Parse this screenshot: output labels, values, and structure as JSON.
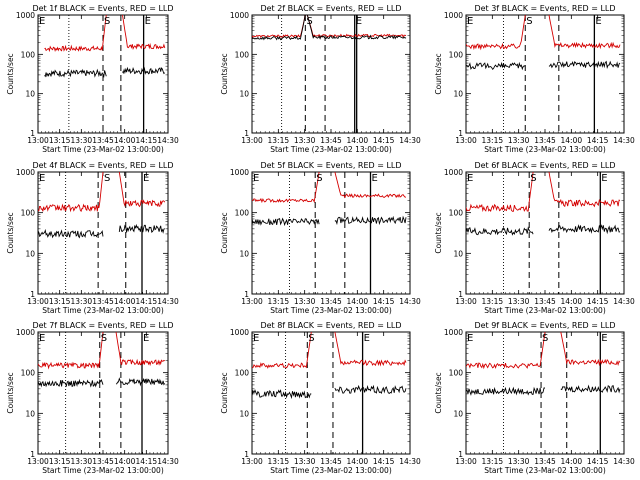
{
  "figure": {
    "background": "#ffffff",
    "series_colors": {
      "events": "#000000",
      "lld": "#d40000"
    }
  },
  "chart_data": [
    {
      "type": "line",
      "title": "Det 1f BLACK = Events, RED = LLD",
      "xlabel": "Start Time (23-Mar-02 13:00:00)",
      "ylabel": "Counts/sec",
      "xticks": [
        "13:00",
        "13:15",
        "13:30",
        "13:45",
        "14:00",
        "14:15",
        "14:30"
      ],
      "yticks": [
        "1",
        "10",
        "100",
        "1000"
      ],
      "ylim": [
        1,
        1000
      ],
      "ylog": true,
      "grid": false,
      "xlim_min": [
        0,
        40
      ],
      "x_range": [
        2,
        39
      ],
      "gap": [
        21,
        26
      ],
      "markers": [
        {
          "label": "E",
          "x": 0
        },
        {
          "label": "S",
          "x": 20
        },
        {
          "label": "E",
          "x": 32.5
        }
      ],
      "dotted_x": 9.5,
      "dashed_x": [
        20,
        25.5
      ],
      "solid_x": [
        32.5
      ],
      "series": [
        {
          "level_before": 140,
          "level_after": 160,
          "peak": 1000,
          "noise": 0.06
        },
        {
          "level_before": 33,
          "level_after": 38,
          "peak": null,
          "noise": 0.08
        }
      ]
    },
    {
      "type": "line",
      "title": "Det 2f BLACK = Events, RED = LLD",
      "xlabel": "Start Time (23-Mar-02 13:00:00)",
      "ylabel": "Counts/sec",
      "xticks": [
        "13:00",
        "13:15",
        "13:30",
        "13:45",
        "14:00",
        "14:15",
        "14:30"
      ],
      "yticks": [
        "1",
        "10",
        "100",
        "1000"
      ],
      "ylim": [
        1,
        1000
      ],
      "ylog": true,
      "grid": false,
      "xlim_min": [
        0,
        40
      ],
      "x_range": [
        0,
        39
      ],
      "gap": [
        13.5,
        14
      ],
      "markers": [
        {
          "label": "S",
          "x": 13.5
        },
        {
          "label": "E",
          "x": 26
        }
      ],
      "dotted_x": 7.5,
      "dashed_x": [
        13.5,
        18.5
      ],
      "solid_x": [
        26,
        26.5
      ],
      "series": [
        {
          "level_before": 290,
          "level_after": 300,
          "peak": 1000,
          "noise": 0.03
        },
        {
          "level_before": 260,
          "level_after": 270,
          "peak": 1000,
          "noise": 0.04
        }
      ]
    },
    {
      "type": "line",
      "title": "Det 3f BLACK = Events, RED = LLD",
      "xlabel": "Start Time (23-Mar-02 13:00:00)",
      "ylabel": "Counts/sec",
      "xticks": [
        "13:00",
        "13:15",
        "13:30",
        "13:45",
        "14:00",
        "14:15",
        "14:30"
      ],
      "yticks": [
        "1",
        "10",
        "100",
        "1000"
      ],
      "ylim": [
        1,
        1000
      ],
      "ylog": true,
      "grid": false,
      "xlim_min": [
        0,
        40
      ],
      "x_range": [
        0,
        39
      ],
      "gap": [
        15,
        21
      ],
      "markers": [
        {
          "label": "E",
          "x": 0
        },
        {
          "label": "S",
          "x": 15
        },
        {
          "label": "E",
          "x": 32.5
        }
      ],
      "dotted_x": 9.5,
      "dashed_x": [
        15,
        23.5
      ],
      "solid_x": [
        32.5
      ],
      "series": [
        {
          "level_before": 160,
          "level_after": 170,
          "peak": 1000,
          "noise": 0.06
        },
        {
          "level_before": 50,
          "level_after": 55,
          "peak": null,
          "noise": 0.08
        }
      ]
    },
    {
      "type": "line",
      "title": "Det 4f BLACK = Events, RED = LLD",
      "xlabel": "Start Time (23-Mar-02 13:00:00)",
      "ylabel": "Counts/sec",
      "xticks": [
        "13:00",
        "13:15",
        "13:30",
        "13:45",
        "14:00",
        "14:15",
        "14:30"
      ],
      "yticks": [
        "1",
        "10",
        "100",
        "1000"
      ],
      "ylim": [
        1,
        1000
      ],
      "ylog": true,
      "grid": false,
      "xlim_min": [
        0,
        40
      ],
      "x_range": [
        0,
        39
      ],
      "gap": [
        20,
        25
      ],
      "markers": [
        {
          "label": "E",
          "x": 0
        },
        {
          "label": "S",
          "x": 20
        },
        {
          "label": "E",
          "x": 32
        }
      ],
      "dotted_x": 8.5,
      "dashed_x": [
        18.5,
        27
      ],
      "solid_x": [
        32
      ],
      "series": [
        {
          "level_before": 130,
          "level_after": 170,
          "peak": 1000,
          "noise": 0.08
        },
        {
          "level_before": 30,
          "level_after": 40,
          "peak": null,
          "noise": 0.09
        }
      ]
    },
    {
      "type": "line",
      "title": "Det 5f BLACK = Events, RED = LLD",
      "xlabel": "Start Time (23-Mar-02 13:00:00)",
      "ylabel": "Counts/sec",
      "xticks": [
        "13:00",
        "13:15",
        "13:30",
        "13:45",
        "14:00",
        "14:15",
        "14:30"
      ],
      "yticks": [
        "1",
        "10",
        "100",
        "1000"
      ],
      "ylim": [
        1,
        1000
      ],
      "ylog": true,
      "grid": false,
      "xlim_min": [
        0,
        40
      ],
      "x_range": [
        0,
        39
      ],
      "gap": [
        17,
        21
      ],
      "markers": [
        {
          "label": "E",
          "x": 0
        },
        {
          "label": "S",
          "x": 16
        },
        {
          "label": "E",
          "x": 30
        }
      ],
      "dotted_x": 9.5,
      "dashed_x": [
        16,
        23.5
      ],
      "solid_x": [
        30
      ],
      "series": [
        {
          "level_before": 200,
          "level_after": 260,
          "peak": 1000,
          "noise": 0.04
        },
        {
          "level_before": 60,
          "level_after": 65,
          "peak": null,
          "noise": 0.08
        }
      ]
    },
    {
      "type": "line",
      "title": "Det 6f BLACK = Events, RED = LLD",
      "xlabel": "Start Time (23-Mar-02 13:00:00)",
      "ylabel": "Counts/sec",
      "xticks": [
        "13:00",
        "13:15",
        "13:30",
        "13:45",
        "14:00",
        "14:15",
        "14:30"
      ],
      "yticks": [
        "1",
        "10",
        "100",
        "1000"
      ],
      "ylim": [
        1,
        1000
      ],
      "ylog": true,
      "grid": false,
      "xlim_min": [
        0,
        40
      ],
      "x_range": [
        0,
        39
      ],
      "gap": [
        17,
        21
      ],
      "markers": [
        {
          "label": "E",
          "x": 0
        },
        {
          "label": "S",
          "x": 16
        },
        {
          "label": "E",
          "x": 34
        }
      ],
      "dotted_x": 9.5,
      "dashed_x": [
        16,
        23.5
      ],
      "solid_x": [
        34
      ],
      "series": [
        {
          "level_before": 130,
          "level_after": 170,
          "peak": 1000,
          "noise": 0.08
        },
        {
          "level_before": 35,
          "level_after": 40,
          "peak": null,
          "noise": 0.09
        }
      ]
    },
    {
      "type": "line",
      "title": "Det 7f BLACK = Events, RED = LLD",
      "xlabel": "Start Time (23-Mar-02 13:00:00)",
      "ylabel": "Counts/sec",
      "xticks": [
        "13:00",
        "13:15",
        "13:30",
        "13:45",
        "14:00",
        "14:15",
        "14:30"
      ],
      "yticks": [
        "1",
        "10",
        "100",
        "1000"
      ],
      "ylim": [
        1,
        1000
      ],
      "ylog": true,
      "grid": false,
      "xlim_min": [
        0,
        40
      ],
      "x_range": [
        0,
        39
      ],
      "gap": [
        20,
        24
      ],
      "markers": [
        {
          "label": "E",
          "x": 0
        },
        {
          "label": "S",
          "x": 19
        },
        {
          "label": "E",
          "x": 32
        }
      ],
      "dotted_x": 8.5,
      "dashed_x": [
        19,
        25.5
      ],
      "solid_x": [
        32
      ],
      "series": [
        {
          "level_before": 150,
          "level_after": 180,
          "peak": 1000,
          "noise": 0.06
        },
        {
          "level_before": 55,
          "level_after": 60,
          "peak": null,
          "noise": 0.08
        }
      ]
    },
    {
      "type": "line",
      "title": "Det 8f BLACK = Events, RED = LLD",
      "xlabel": "Start Time (23-Mar-02 13:00:00)",
      "ylabel": "Counts/sec",
      "xticks": [
        "13:00",
        "13:15",
        "13:30",
        "13:45",
        "14:00",
        "14:15",
        "14:30"
      ],
      "yticks": [
        "1",
        "10",
        "100",
        "1000"
      ],
      "ylim": [
        1,
        1000
      ],
      "ylog": true,
      "grid": false,
      "xlim_min": [
        0,
        40
      ],
      "x_range": [
        0,
        39
      ],
      "gap": [
        15,
        21
      ],
      "markers": [
        {
          "label": "E",
          "x": 0
        },
        {
          "label": "S",
          "x": 14
        },
        {
          "label": "E",
          "x": 28
        }
      ],
      "dotted_x": 8.5,
      "dashed_x": [
        14,
        20.5
      ],
      "solid_x": [
        28
      ],
      "series": [
        {
          "level_before": 150,
          "level_after": 175,
          "peak": 1000,
          "noise": 0.06
        },
        {
          "level_before": 30,
          "level_after": 38,
          "peak": null,
          "noise": 0.09
        }
      ]
    },
    {
      "type": "line",
      "title": "Det 9f BLACK = Events, RED = LLD",
      "xlabel": "Start Time (23-Mar-02 13:00:00)",
      "ylabel": "Counts/sec",
      "xticks": [
        "13:00",
        "13:15",
        "13:30",
        "13:45",
        "14:00",
        "14:15",
        "14:30"
      ],
      "yticks": [
        "1",
        "10",
        "100",
        "1000"
      ],
      "ylim": [
        1,
        1000
      ],
      "ylog": true,
      "grid": false,
      "xlim_min": [
        0,
        40
      ],
      "x_range": [
        0,
        39
      ],
      "gap": [
        20,
        24
      ],
      "markers": [
        {
          "label": "E",
          "x": 0
        },
        {
          "label": "S",
          "x": 19
        },
        {
          "label": "E",
          "x": 34
        }
      ],
      "dotted_x": 9.5,
      "dashed_x": [
        19,
        25.5
      ],
      "solid_x": [
        34
      ],
      "series": [
        {
          "level_before": 150,
          "level_after": 180,
          "peak": 1000,
          "noise": 0.06
        },
        {
          "level_before": 35,
          "level_after": 40,
          "peak": null,
          "noise": 0.08
        }
      ]
    }
  ]
}
